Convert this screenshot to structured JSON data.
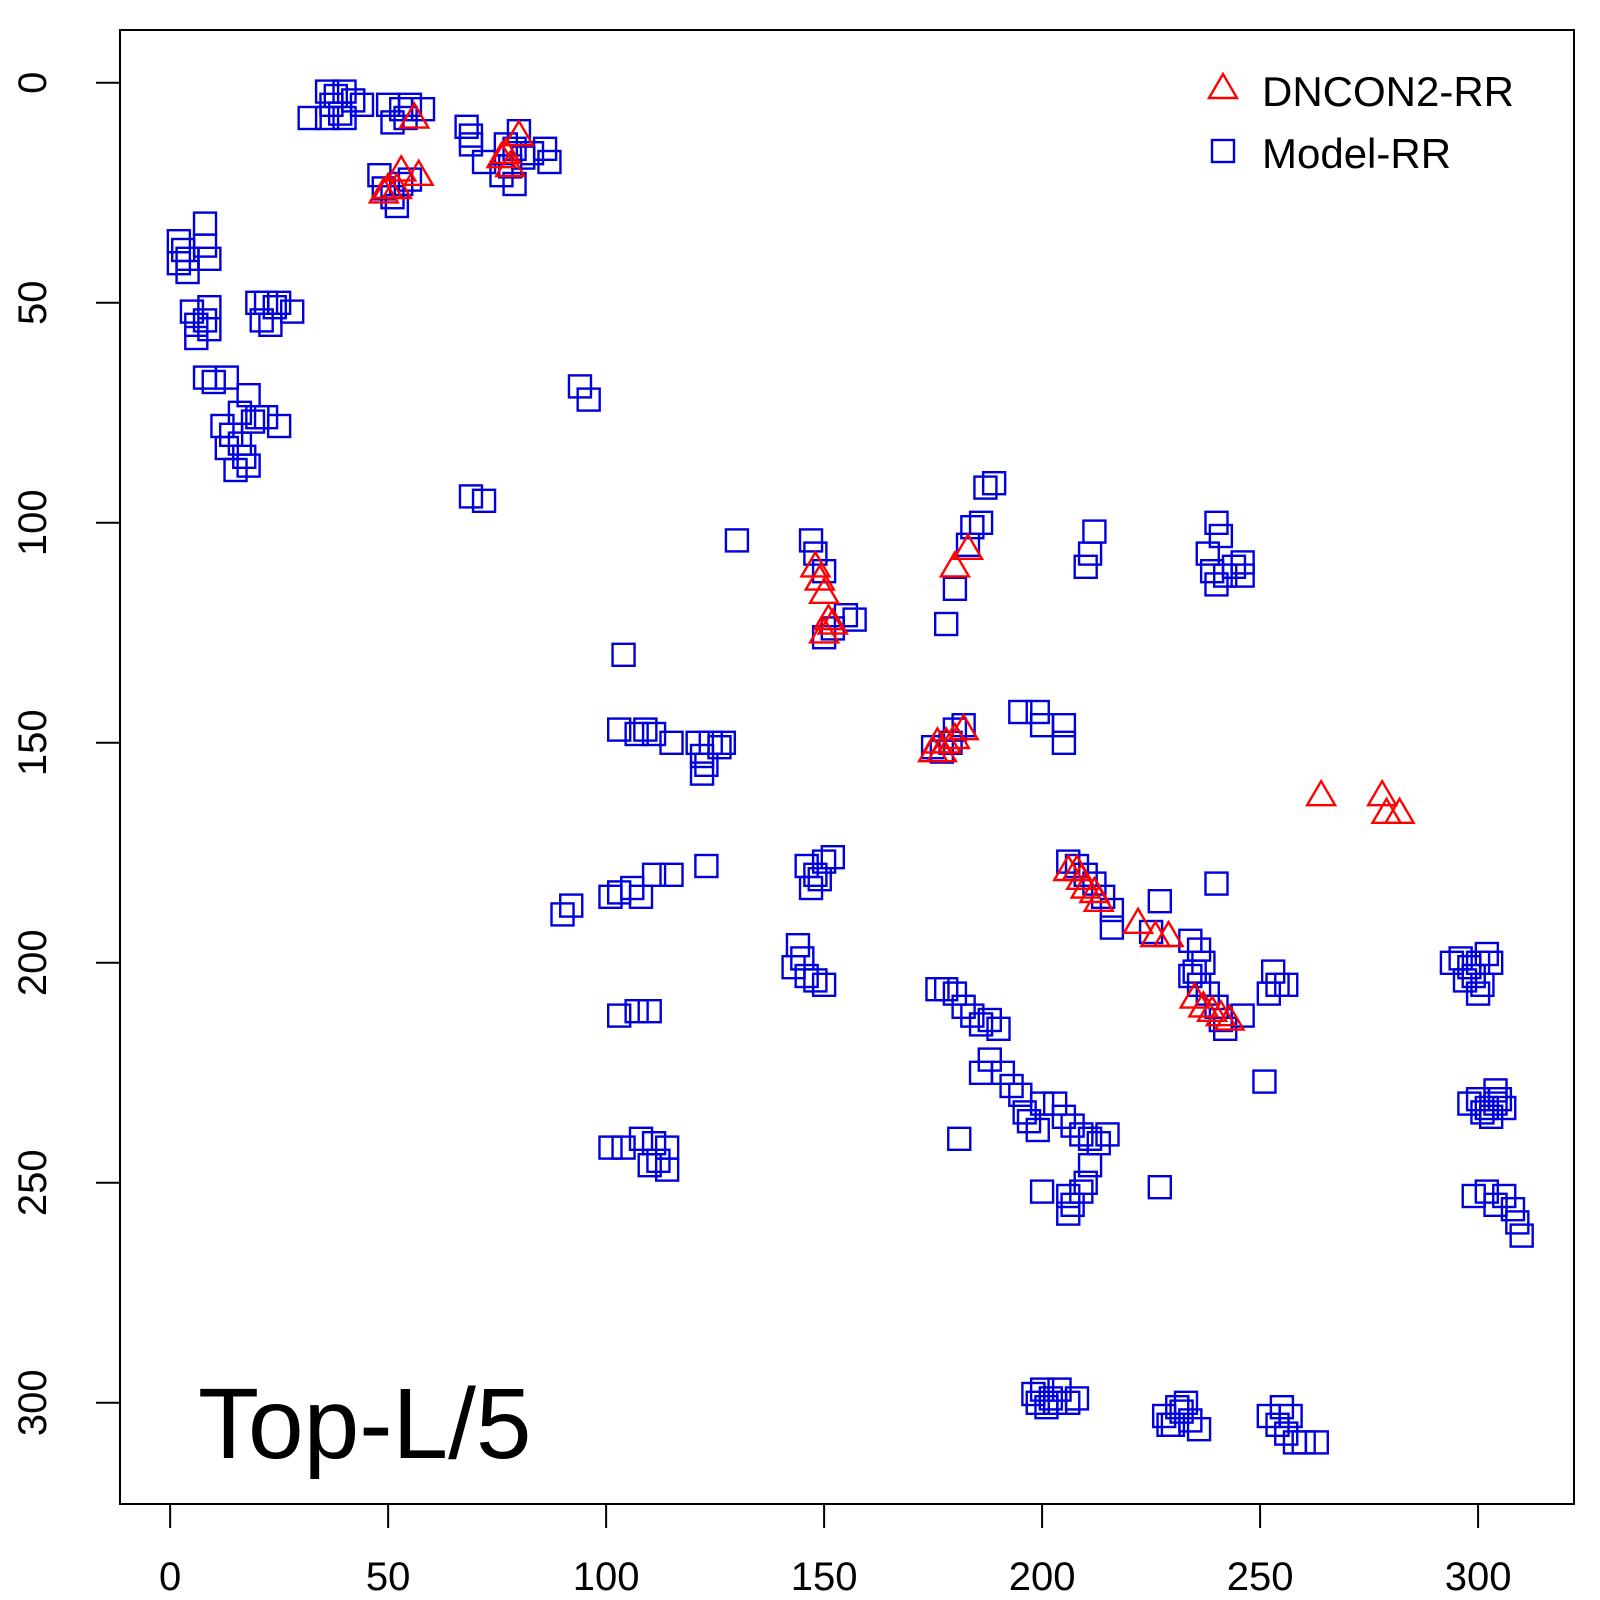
{
  "chart_data": {
    "type": "scatter",
    "title": "",
    "xlabel": "",
    "ylabel": "",
    "xlim": [
      -11.5,
      322
    ],
    "ylim": [
      -12,
      323
    ],
    "y_reversed": true,
    "x_ticks": [
      "0",
      "50",
      "100",
      "150",
      "200",
      "250",
      "300"
    ],
    "y_ticks": [
      "0",
      "50",
      "100",
      "150",
      "200",
      "250",
      "300"
    ],
    "grid": false,
    "annotation": "Top-L/5",
    "legend": {
      "position": "top-right",
      "entries": [
        {
          "name": "DNCON2-RR",
          "marker": "triangle",
          "color": "#ff0000"
        },
        {
          "name": "Model-RR",
          "marker": "square",
          "color": "#0000dd"
        }
      ]
    },
    "series": [
      {
        "name": "DNCON2-RR",
        "marker": "triangle",
        "color": "#ff0000",
        "points": [
          [
            56,
            8
          ],
          [
            80,
            12
          ],
          [
            53,
            20
          ],
          [
            57,
            21
          ],
          [
            50,
            24
          ],
          [
            52,
            24
          ],
          [
            49,
            25
          ],
          [
            76,
            17
          ],
          [
            78,
            19
          ],
          [
            77,
            16
          ],
          [
            148,
            110
          ],
          [
            149,
            113
          ],
          [
            150,
            116
          ],
          [
            151,
            122
          ],
          [
            152,
            123
          ],
          [
            150,
            125
          ],
          [
            180,
            110
          ],
          [
            183,
            106
          ],
          [
            176,
            150
          ],
          [
            178,
            150
          ],
          [
            180,
            149
          ],
          [
            182,
            147
          ],
          [
            177,
            152
          ],
          [
            175,
            152
          ],
          [
            264,
            162
          ],
          [
            278,
            162
          ],
          [
            279,
            166
          ],
          [
            282,
            166
          ],
          [
            206,
            179
          ],
          [
            208,
            179
          ],
          [
            209,
            181
          ],
          [
            210,
            183
          ],
          [
            212,
            184
          ],
          [
            213,
            186
          ],
          [
            222,
            191
          ],
          [
            226,
            194
          ],
          [
            229,
            194
          ],
          [
            235,
            208
          ],
          [
            237,
            210
          ],
          [
            239,
            211
          ],
          [
            241,
            212
          ],
          [
            243,
            213
          ]
        ]
      },
      {
        "name": "Model-RR",
        "marker": "square",
        "color": "#0000dd",
        "points": [
          [
            36,
            2
          ],
          [
            38,
            3
          ],
          [
            40,
            2
          ],
          [
            37,
            5
          ],
          [
            39,
            7
          ],
          [
            42,
            4
          ],
          [
            44,
            5
          ],
          [
            36,
            8
          ],
          [
            40,
            8
          ],
          [
            32,
            8
          ],
          [
            50,
            5
          ],
          [
            53,
            6
          ],
          [
            55,
            5
          ],
          [
            58,
            6
          ],
          [
            51,
            9
          ],
          [
            54,
            8
          ],
          [
            68,
            10
          ],
          [
            69,
            12
          ],
          [
            69,
            14
          ],
          [
            72,
            18
          ],
          [
            77,
            14
          ],
          [
            79,
            15
          ],
          [
            80,
            11
          ],
          [
            81,
            17
          ],
          [
            83,
            16
          ],
          [
            86,
            15
          ],
          [
            87,
            18
          ],
          [
            79,
            23
          ],
          [
            78,
            19
          ],
          [
            76,
            21
          ],
          [
            48,
            21
          ],
          [
            49,
            24
          ],
          [
            51,
            26
          ],
          [
            52,
            28
          ],
          [
            53,
            23
          ],
          [
            55,
            22
          ],
          [
            2,
            36
          ],
          [
            3,
            38
          ],
          [
            4,
            40
          ],
          [
            2,
            41
          ],
          [
            4,
            43
          ],
          [
            8,
            32
          ],
          [
            8,
            37
          ],
          [
            9,
            40
          ],
          [
            5,
            52
          ],
          [
            6,
            55
          ],
          [
            8,
            54
          ],
          [
            6,
            58
          ],
          [
            9,
            51
          ],
          [
            9,
            56
          ],
          [
            20,
            50
          ],
          [
            22,
            50
          ],
          [
            24,
            51
          ],
          [
            25,
            50
          ],
          [
            21,
            54
          ],
          [
            23,
            55
          ],
          [
            28,
            52
          ],
          [
            8,
            67
          ],
          [
            10,
            68
          ],
          [
            13,
            67
          ],
          [
            18,
            71
          ],
          [
            16,
            75
          ],
          [
            19,
            77
          ],
          [
            20,
            76
          ],
          [
            22,
            76
          ],
          [
            25,
            78
          ],
          [
            12,
            78
          ],
          [
            14,
            80
          ],
          [
            13,
            83
          ],
          [
            16,
            82
          ],
          [
            17,
            85
          ],
          [
            18,
            87
          ],
          [
            15,
            88
          ],
          [
            94,
            69
          ],
          [
            96,
            72
          ],
          [
            69,
            94
          ],
          [
            72,
            95
          ],
          [
            130,
            104
          ],
          [
            104,
            130
          ],
          [
            147,
            104
          ],
          [
            148,
            107
          ],
          [
            150,
            111
          ],
          [
            150,
            126
          ],
          [
            152,
            124
          ],
          [
            155,
            121
          ],
          [
            157,
            122
          ],
          [
            178,
            123
          ],
          [
            180,
            115
          ],
          [
            183,
            105
          ],
          [
            184,
            101
          ],
          [
            186,
            100
          ],
          [
            187,
            92
          ],
          [
            189,
            91
          ],
          [
            212,
            102
          ],
          [
            211,
            107
          ],
          [
            210,
            110
          ],
          [
            240,
            100
          ],
          [
            241,
            103
          ],
          [
            238,
            107
          ],
          [
            239,
            111
          ],
          [
            240,
            114
          ],
          [
            242,
            112
          ],
          [
            244,
            110
          ],
          [
            246,
            112
          ],
          [
            246,
            109
          ],
          [
            103,
            147
          ],
          [
            107,
            148
          ],
          [
            109,
            147
          ],
          [
            111,
            148
          ],
          [
            115,
            150
          ],
          [
            121,
            150
          ],
          [
            122,
            153
          ],
          [
            123,
            155
          ],
          [
            122,
            157
          ],
          [
            124,
            150
          ],
          [
            126,
            151
          ],
          [
            127,
            150
          ],
          [
            175,
            151
          ],
          [
            177,
            152
          ],
          [
            179,
            150
          ],
          [
            180,
            147
          ],
          [
            182,
            146
          ],
          [
            195,
            143
          ],
          [
            199,
            143
          ],
          [
            200,
            146
          ],
          [
            205,
            146
          ],
          [
            205,
            150
          ],
          [
            123,
            178
          ],
          [
            115,
            180
          ],
          [
            111,
            180
          ],
          [
            106,
            183
          ],
          [
            103,
            184
          ],
          [
            101,
            185
          ],
          [
            108,
            185
          ],
          [
            90,
            189
          ],
          [
            92,
            187
          ],
          [
            146,
            178
          ],
          [
            148,
            180
          ],
          [
            150,
            177
          ],
          [
            152,
            176
          ],
          [
            147,
            183
          ],
          [
            149,
            181
          ],
          [
            240,
            182
          ],
          [
            206,
            177
          ],
          [
            208,
            178
          ],
          [
            210,
            180
          ],
          [
            212,
            182
          ],
          [
            214,
            185
          ],
          [
            216,
            188
          ],
          [
            216,
            192
          ],
          [
            227,
            186
          ],
          [
            225,
            193
          ],
          [
            234,
            195
          ],
          [
            236,
            197
          ],
          [
            237,
            200
          ],
          [
            235,
            202
          ],
          [
            234,
            203
          ],
          [
            236,
            205
          ],
          [
            238,
            207
          ],
          [
            240,
            210
          ],
          [
            241,
            213
          ],
          [
            242,
            215
          ],
          [
            246,
            212
          ],
          [
            253,
            202
          ],
          [
            254,
            205
          ],
          [
            252,
            207
          ],
          [
            256,
            205
          ],
          [
            251,
            227
          ],
          [
            144,
            196
          ],
          [
            145,
            199
          ],
          [
            143,
            201
          ],
          [
            146,
            203
          ],
          [
            148,
            204
          ],
          [
            150,
            205
          ],
          [
            103,
            212
          ],
          [
            107,
            211
          ],
          [
            110,
            211
          ],
          [
            176,
            206
          ],
          [
            178,
            206
          ],
          [
            180,
            207
          ],
          [
            182,
            210
          ],
          [
            184,
            212
          ],
          [
            186,
            214
          ],
          [
            188,
            213
          ],
          [
            190,
            215
          ],
          [
            188,
            222
          ],
          [
            186,
            225
          ],
          [
            191,
            225
          ],
          [
            193,
            228
          ],
          [
            195,
            230
          ],
          [
            196,
            234
          ],
          [
            197,
            236
          ],
          [
            199,
            238
          ],
          [
            181,
            240
          ],
          [
            200,
            232
          ],
          [
            203,
            232
          ],
          [
            205,
            235
          ],
          [
            207,
            237
          ],
          [
            209,
            239
          ],
          [
            211,
            240
          ],
          [
            213,
            241
          ],
          [
            215,
            239
          ],
          [
            211,
            246
          ],
          [
            101,
            242
          ],
          [
            104,
            242
          ],
          [
            108,
            240
          ],
          [
            111,
            241
          ],
          [
            114,
            242
          ],
          [
            112,
            245
          ],
          [
            110,
            246
          ],
          [
            114,
            247
          ],
          [
            200,
            252
          ],
          [
            206,
            253
          ],
          [
            207,
            255
          ],
          [
            206,
            257
          ],
          [
            209,
            252
          ],
          [
            210,
            250
          ],
          [
            227,
            251
          ],
          [
            294,
            200
          ],
          [
            296,
            199
          ],
          [
            298,
            201
          ],
          [
            300,
            200
          ],
          [
            302,
            198
          ],
          [
            297,
            204
          ],
          [
            299,
            203
          ],
          [
            301,
            205
          ],
          [
            300,
            207
          ],
          [
            303,
            200
          ],
          [
            298,
            232
          ],
          [
            300,
            231
          ],
          [
            302,
            233
          ],
          [
            304,
            232
          ],
          [
            305,
            231
          ],
          [
            301,
            234
          ],
          [
            303,
            235
          ],
          [
            306,
            233
          ],
          [
            304,
            229
          ],
          [
            299,
            253
          ],
          [
            302,
            252
          ],
          [
            304,
            255
          ],
          [
            306,
            253
          ],
          [
            308,
            256
          ],
          [
            309,
            259
          ],
          [
            310,
            262
          ],
          [
            198,
            298
          ],
          [
            200,
            297
          ],
          [
            202,
            299
          ],
          [
            204,
            297
          ],
          [
            199,
            300
          ],
          [
            201,
            301
          ],
          [
            203,
            300
          ],
          [
            206,
            300
          ],
          [
            208,
            299
          ],
          [
            228,
            303
          ],
          [
            230,
            305
          ],
          [
            232,
            302
          ],
          [
            234,
            304
          ],
          [
            236,
            306
          ],
          [
            231,
            301
          ],
          [
            233,
            300
          ],
          [
            229,
            305
          ],
          [
            252,
            303
          ],
          [
            254,
            305
          ],
          [
            256,
            307
          ],
          [
            258,
            309
          ],
          [
            260,
            309
          ],
          [
            263,
            309
          ],
          [
            255,
            301
          ],
          [
            257,
            303
          ]
        ]
      }
    ]
  }
}
